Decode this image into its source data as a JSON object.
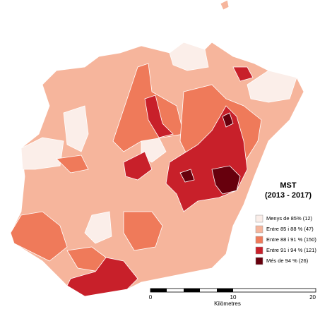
{
  "map": {
    "title": "MST",
    "subtitle": "(2013 - 2017)",
    "legend": [
      {
        "label": "Menys de 85% (12)",
        "color": "#fbeee9"
      },
      {
        "label": "Entre 85 i 88 % (47)",
        "color": "#f6b59c"
      },
      {
        "label": "Entre 88 i 91 % (150)",
        "color": "#ef7a5a"
      },
      {
        "label": "Entre 91 i 94 % (121)",
        "color": "#c8202a"
      },
      {
        "label": "Més de 94 % (26)",
        "color": "#67000d"
      }
    ],
    "scale": {
      "ticks": [
        "0",
        "10",
        "20"
      ],
      "unit": "Kilòmetres"
    }
  }
}
